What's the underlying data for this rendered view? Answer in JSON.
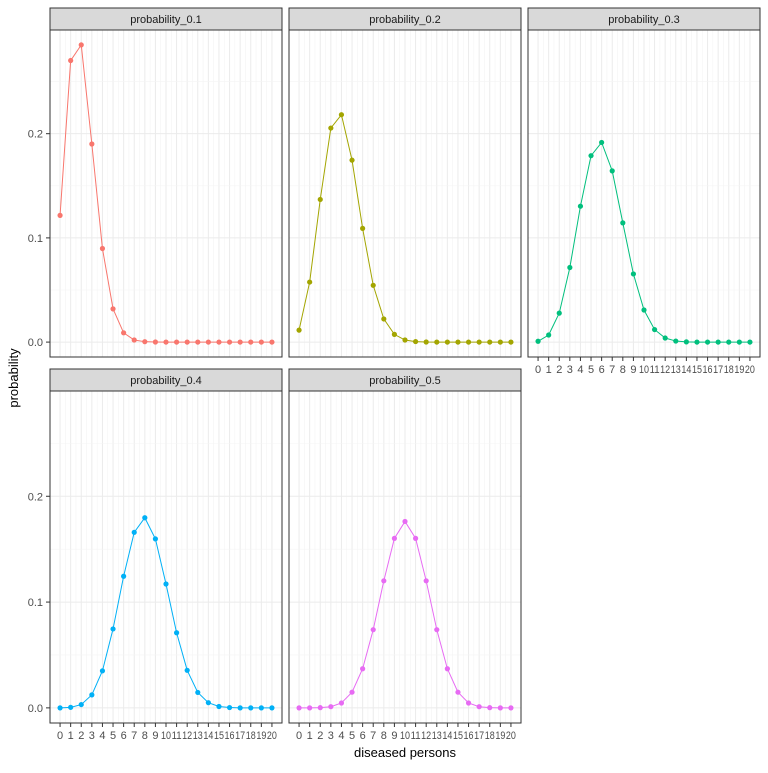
{
  "chart_data": {
    "type": "line",
    "xlabel": "diseased persons",
    "ylabel": "probability",
    "x": [
      0,
      1,
      2,
      3,
      4,
      5,
      6,
      7,
      8,
      9,
      10,
      11,
      12,
      13,
      14,
      15,
      16,
      17,
      18,
      19,
      20
    ],
    "x_tick_labels": [
      "0",
      "1",
      "2",
      "3",
      "4",
      "5",
      "6",
      "7",
      "8",
      "9",
      "10",
      "11",
      "12",
      "13",
      "14",
      "15",
      "16",
      "17",
      "18",
      "19",
      "20"
    ],
    "y_ticks": [
      0.0,
      0.1,
      0.2
    ],
    "y_tick_labels": [
      "0.0",
      "0.1",
      "0.2"
    ],
    "ylim": [
      -0.0143,
      0.2995
    ],
    "grid": true,
    "legend": "none",
    "facets": [
      {
        "label": "probability_0.1",
        "color": "#F8766D",
        "values": [
          0.1216,
          0.2702,
          0.2852,
          0.1901,
          0.0898,
          0.0319,
          0.0089,
          0.002,
          0.0004,
          0.0001,
          0,
          0,
          0,
          0,
          0,
          0,
          0,
          0,
          0,
          0,
          0
        ]
      },
      {
        "label": "probability_0.2",
        "color": "#A3A500",
        "values": [
          0.0115,
          0.0576,
          0.1369,
          0.2054,
          0.2182,
          0.1746,
          0.1091,
          0.0545,
          0.0222,
          0.0074,
          0.002,
          0.0005,
          0.0001,
          0,
          0,
          0,
          0,
          0,
          0,
          0,
          0
        ]
      },
      {
        "label": "probability_0.3",
        "color": "#00BF7D",
        "values": [
          0.0008,
          0.0068,
          0.0278,
          0.0716,
          0.1304,
          0.1789,
          0.1916,
          0.1643,
          0.1144,
          0.0654,
          0.0308,
          0.012,
          0.0039,
          0.001,
          0.0002,
          0,
          0,
          0,
          0,
          0,
          0
        ]
      },
      {
        "label": "probability_0.4",
        "color": "#00B0F6",
        "values": [
          0.0,
          0.0005,
          0.0031,
          0.0123,
          0.035,
          0.0746,
          0.1244,
          0.1659,
          0.1797,
          0.1597,
          0.1171,
          0.071,
          0.0355,
          0.0146,
          0.0049,
          0.0013,
          0.0003,
          0,
          0,
          0,
          0
        ]
      },
      {
        "label": "probability_0.5",
        "color": "#E76BF3",
        "values": [
          0,
          0,
          0.0002,
          0.0011,
          0.0046,
          0.0148,
          0.037,
          0.0739,
          0.1201,
          0.1602,
          0.1762,
          0.1602,
          0.1201,
          0.0739,
          0.037,
          0.0148,
          0.0046,
          0.0011,
          0.0002,
          0,
          0
        ]
      }
    ]
  }
}
